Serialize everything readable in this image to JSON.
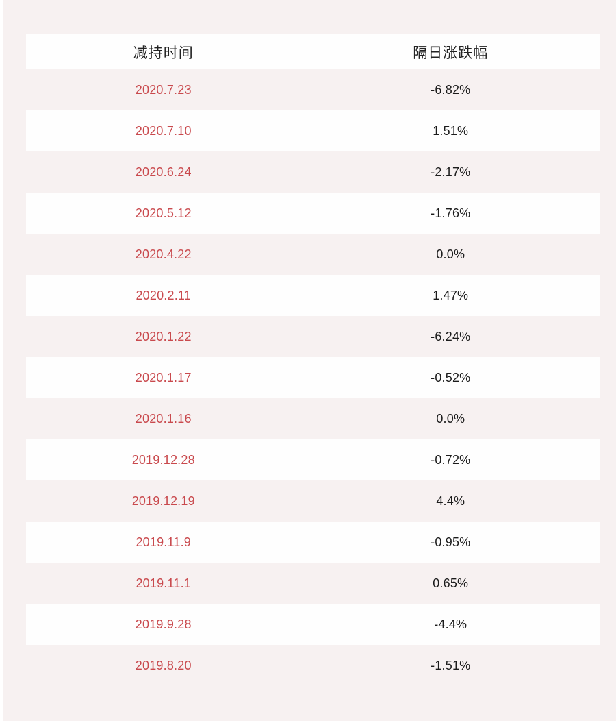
{
  "page": {
    "background": "#f7f1f1",
    "row_white": "#fefefe",
    "accent_red": "#c9494d",
    "value_text_color": "#1c1c1c",
    "header_text_color": "#222222"
  },
  "chart_data": {
    "type": "table",
    "columns": [
      "减持时间",
      "隔日涨跌幅"
    ],
    "rows": [
      [
        "2020.7.23",
        "-6.82%"
      ],
      [
        "2020.7.10",
        "1.51%"
      ],
      [
        "2020.6.24",
        "-2.17%"
      ],
      [
        "2020.5.12",
        "-1.76%"
      ],
      [
        "2020.4.22",
        "0.0%"
      ],
      [
        "2020.2.11",
        "1.47%"
      ],
      [
        "2020.1.22",
        "-6.24%"
      ],
      [
        "2020.1.17",
        "-0.52%"
      ],
      [
        "2020.1.16",
        "0.0%"
      ],
      [
        "2019.12.28",
        "-0.72%"
      ],
      [
        "2019.12.19",
        "4.4%"
      ],
      [
        "2019.11.9",
        "-0.95%"
      ],
      [
        "2019.11.1",
        "0.65%"
      ],
      [
        "2019.9.28",
        "-4.4%"
      ],
      [
        "2019.8.20",
        "-1.51%"
      ]
    ],
    "layout": {
      "striped": true,
      "stripe_colors": [
        "#f7f1f1",
        "#fefefe"
      ],
      "header_background": "#fefefe",
      "column_alignment": "center"
    }
  }
}
